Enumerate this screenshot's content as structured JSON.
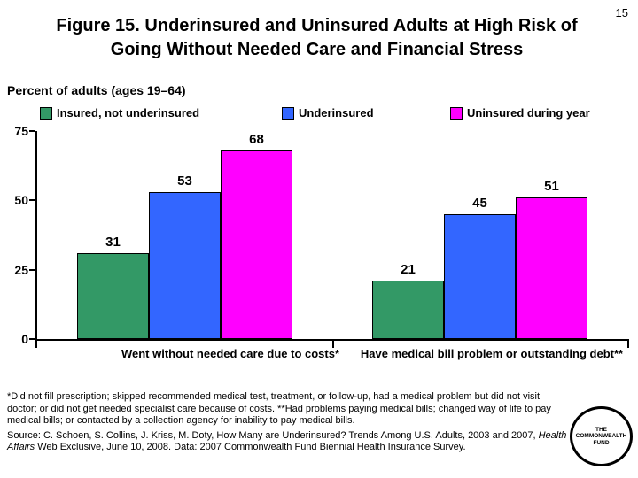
{
  "page": {
    "number": "15"
  },
  "title_lines": [
    "Figure 15. Underinsured and Uninsured Adults at High Risk of",
    "Going Without Needed Care and Financial Stress"
  ],
  "chart_data": {
    "type": "bar",
    "title": "Figure 15. Underinsured and Uninsured Adults at High Risk of Going Without Needed Care and Financial Stress",
    "ylabel": "Percent of adults (ages 19–64)",
    "xlabel": "",
    "categories": [
      "Went without needed care due to costs*",
      "Have medical bill problem or outstanding debt**"
    ],
    "series": [
      {
        "name": "Insured, not underinsured",
        "color": "#339966",
        "values": [
          31,
          21
        ]
      },
      {
        "name": "Underinsured",
        "color": "#3366FF",
        "values": [
          53,
          45
        ]
      },
      {
        "name": "Uninsured during year",
        "color": "#FF00FF",
        "values": [
          68,
          51
        ]
      }
    ],
    "ylim": [
      0,
      75
    ],
    "yticks": [
      0,
      25,
      50,
      75
    ],
    "grid": false,
    "legend_position": "top",
    "bar_labels_shown": true
  },
  "footnotes": {
    "definitions": "*Did not fill prescription; skipped recommended medical test, treatment, or follow-up, had a medical problem but did not visit doctor; or did not get needed specialist care because of costs. **Had problems paying medical bills; changed way of life to pay medical bills; or contacted by a collection agency for inability to pay medical bills.",
    "source_prefix": "Source: C. Schoen, S. Collins, J. Kriss, M. Doty, How Many are Underinsured? Trends Among U.S. Adults, 2003 and 2007, ",
    "source_italic": "Health Affairs",
    "source_suffix": " Web Exclusive, June 10, 2008. Data: 2007 Commonwealth Fund Biennial Health Insurance Survey."
  },
  "logo": {
    "line1": "THE",
    "line2": "COMMONWEALTH",
    "line3": "FUND"
  }
}
